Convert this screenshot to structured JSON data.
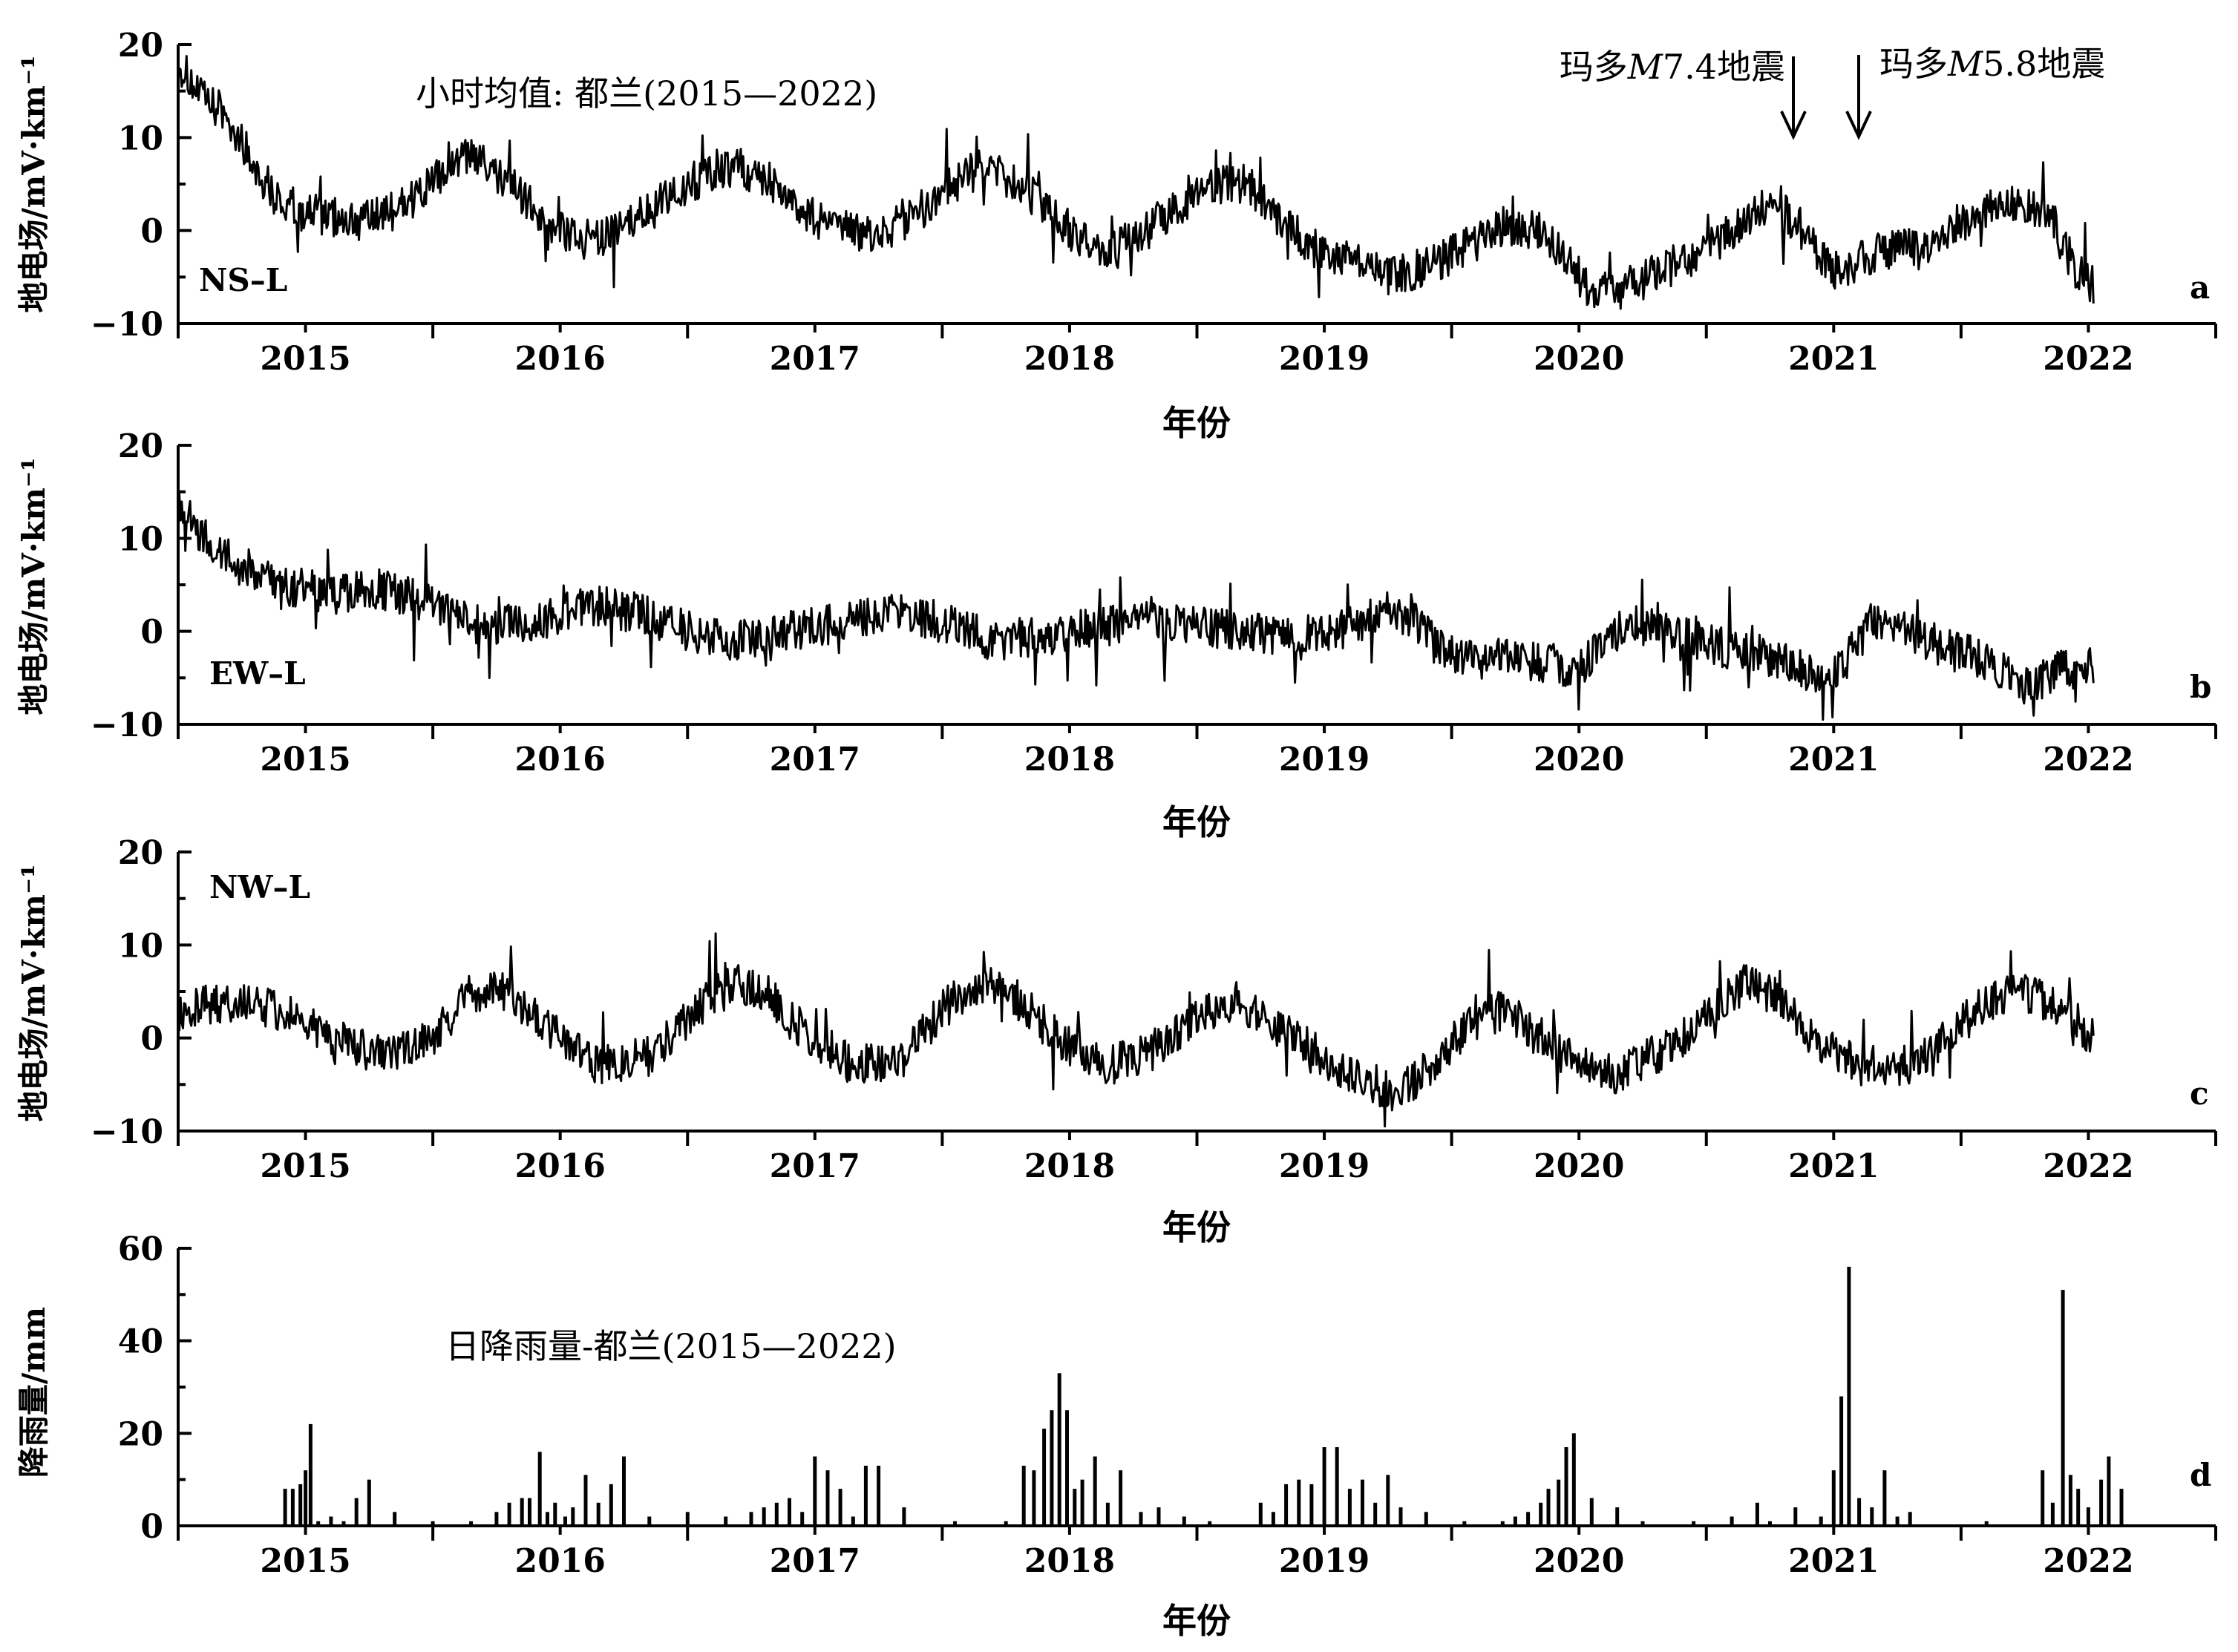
{
  "chart_data": [
    {
      "type": "line",
      "panel_id": "a",
      "series_label": "NS–L",
      "title": "小时均值: 都兰(2015—2022)",
      "ylabel": "地电场/mV·km⁻¹",
      "xlabel": "年份",
      "ylim": [
        -10,
        20
      ],
      "yticks": [
        20,
        10,
        0,
        -10
      ],
      "xlim": [
        2014.5,
        2022.5
      ],
      "xticks": [
        2015,
        2016,
        2017,
        2018,
        2019,
        2020,
        2021,
        2022
      ],
      "grid": false,
      "annotations": [
        {
          "text_prefix": "玛多",
          "text_mag": "M",
          "text_suffix": "7.4地震",
          "x": 2020.83
        },
        {
          "text_prefix": "玛多",
          "text_mag": "M",
          "text_suffix": "5.8地震",
          "x": 2021.1
        }
      ],
      "x": [
        2014.5,
        2014.6,
        2014.7,
        2014.8,
        2014.9,
        2015.0,
        2015.1,
        2015.25,
        2015.4,
        2015.5,
        2015.6,
        2015.65,
        2015.8,
        2015.95,
        2016.1,
        2016.2,
        2016.35,
        2016.5,
        2016.65,
        2016.8,
        2016.95,
        2017.1,
        2017.25,
        2017.4,
        2017.55,
        2017.65,
        2017.8,
        2017.95,
        2018.05,
        2018.15,
        2018.3,
        2018.45,
        2018.6,
        2018.7,
        2018.8,
        2018.95,
        2019.1,
        2019.25,
        2019.4,
        2019.55,
        2019.7,
        2019.85,
        2019.95,
        2020.05,
        2020.2,
        2020.35,
        2020.5,
        2020.65,
        2020.75,
        2020.85,
        2020.95,
        2021.05,
        2021.1,
        2021.2,
        2021.35,
        2021.5,
        2021.6,
        2021.75,
        2021.85,
        2021.95,
        2022.02
      ],
      "y": [
        18,
        14,
        12,
        7,
        3,
        2,
        1.5,
        1,
        3,
        5,
        7.5,
        8,
        5,
        1,
        -1,
        -0.5,
        2,
        5,
        7,
        6,
        2,
        0,
        -0.5,
        2,
        5,
        7,
        5,
        1,
        -1,
        -2,
        0,
        3,
        5,
        5,
        2,
        -2,
        -3,
        -5,
        -4,
        -2,
        0.5,
        0,
        -3,
        -7,
        -6,
        -4,
        -2,
        1,
        3,
        1,
        -3,
        -5,
        -3,
        -2,
        -2,
        1,
        2,
        3,
        1,
        -4,
        -6
      ]
    },
    {
      "type": "line",
      "panel_id": "b",
      "series_label": "EW–L",
      "ylabel": "地电场/mV·km⁻¹",
      "xlabel": "年份",
      "ylim": [
        -10,
        20
      ],
      "yticks": [
        20,
        10,
        0,
        -10
      ],
      "xlim": [
        2014.5,
        2022.5
      ],
      "xticks": [
        2015,
        2016,
        2017,
        2018,
        2019,
        2020,
        2021,
        2022
      ],
      "grid": false,
      "x": [
        2014.5,
        2014.6,
        2014.75,
        2014.9,
        2015.1,
        2015.3,
        2015.5,
        2015.7,
        2015.9,
        2016.1,
        2016.3,
        2016.5,
        2016.7,
        2016.9,
        2017.1,
        2017.3,
        2017.5,
        2017.7,
        2017.9,
        2018.1,
        2018.3,
        2018.5,
        2018.7,
        2018.9,
        2019.1,
        2019.25,
        2019.35,
        2019.45,
        2019.6,
        2019.8,
        2020.0,
        2020.15,
        2020.3,
        2020.45,
        2020.6,
        2020.8,
        2020.95,
        2021.05,
        2021.15,
        2021.3,
        2021.45,
        2021.6,
        2021.75,
        2021.9,
        2022.02
      ],
      "y": [
        14,
        10,
        7,
        5,
        4,
        4.5,
        3,
        0.5,
        1,
        3,
        2,
        0,
        -1,
        0,
        1,
        2,
        1,
        -1,
        -0.5,
        0.5,
        1,
        0.5,
        0,
        -0.5,
        0.5,
        2,
        1.5,
        -2,
        -3,
        -3,
        -4,
        0,
        1,
        -1,
        -2,
        -3,
        -5,
        -3,
        1,
        0,
        -2,
        -3,
        -6,
        -4,
        -4
      ]
    },
    {
      "type": "line",
      "panel_id": "c",
      "series_label": "NW–L",
      "ylabel": "地电场/mV·km⁻¹",
      "xlabel": "年份",
      "ylim": [
        -10,
        20
      ],
      "yticks": [
        20,
        10,
        0,
        -10
      ],
      "xlim": [
        2014.5,
        2022.5
      ],
      "xticks": [
        2015,
        2016,
        2017,
        2018,
        2019,
        2020,
        2021,
        2022
      ],
      "grid": false,
      "x": [
        2014.5,
        2014.7,
        2014.9,
        2015.1,
        2015.3,
        2015.5,
        2015.65,
        2015.8,
        2015.95,
        2016.15,
        2016.35,
        2016.5,
        2016.65,
        2016.8,
        2016.95,
        2017.15,
        2017.35,
        2017.5,
        2017.65,
        2017.8,
        2017.95,
        2018.15,
        2018.35,
        2018.5,
        2018.65,
        2018.8,
        2018.95,
        2019.1,
        2019.3,
        2019.45,
        2019.6,
        2019.7,
        2019.85,
        2020.0,
        2020.15,
        2020.35,
        2020.5,
        2020.65,
        2020.8,
        2020.95,
        2021.1,
        2021.3,
        2021.45,
        2021.6,
        2021.75,
        2021.9,
        2022.02
      ],
      "y": [
        3,
        4,
        3,
        0,
        -2,
        0,
        5,
        5,
        1,
        -3,
        -2,
        2,
        6,
        5,
        1,
        -3,
        -2,
        3,
        6,
        4,
        0,
        -3,
        -1,
        2,
        4,
        2,
        -1,
        -4,
        -6,
        -2,
        2,
        3,
        0,
        -3,
        -4,
        -1,
        2,
        6,
        4,
        -1,
        -3,
        -3,
        0,
        4,
        5,
        3,
        0
      ]
    },
    {
      "type": "bar",
      "panel_id": "d",
      "title": "日降雨量-都兰(2015—2022)",
      "ylabel": "降雨量/mm",
      "xlabel": "年份",
      "ylim": [
        0,
        60
      ],
      "yticks": [
        0,
        20,
        40,
        60
      ],
      "xlim": [
        2014.5,
        2022.5
      ],
      "xticks": [
        2015,
        2016,
        2017,
        2018,
        2019,
        2020,
        2021,
        2022
      ],
      "grid": false,
      "x": [
        2014.92,
        2014.95,
        2014.98,
        2015.0,
        2015.02,
        2015.05,
        2015.1,
        2015.15,
        2015.2,
        2015.25,
        2015.35,
        2015.5,
        2015.65,
        2015.75,
        2015.8,
        2015.85,
        2015.88,
        2015.92,
        2015.95,
        2015.98,
        2016.02,
        2016.05,
        2016.1,
        2016.15,
        2016.2,
        2016.25,
        2016.35,
        2016.5,
        2016.65,
        2016.75,
        2016.8,
        2016.85,
        2016.9,
        2016.95,
        2017.0,
        2017.05,
        2017.1,
        2017.15,
        2017.2,
        2017.25,
        2017.35,
        2017.55,
        2017.75,
        2017.82,
        2017.86,
        2017.9,
        2017.93,
        2017.96,
        2017.99,
        2018.02,
        2018.05,
        2018.1,
        2018.15,
        2018.2,
        2018.28,
        2018.35,
        2018.45,
        2018.55,
        2018.75,
        2018.8,
        2018.85,
        2018.9,
        2018.95,
        2019.0,
        2019.05,
        2019.1,
        2019.15,
        2019.2,
        2019.25,
        2019.3,
        2019.4,
        2019.55,
        2019.7,
        2019.75,
        2019.8,
        2019.85,
        2019.88,
        2019.92,
        2019.95,
        2019.98,
        2020.05,
        2020.15,
        2020.25,
        2020.45,
        2020.6,
        2020.7,
        2020.75,
        2020.85,
        2020.95,
        2021.0,
        2021.03,
        2021.06,
        2021.1,
        2021.15,
        2021.2,
        2021.25,
        2021.3,
        2021.6,
        2021.82,
        2021.86,
        2021.9,
        2021.93,
        2021.96,
        2022.0,
        2022.05,
        2022.08,
        2022.13
      ],
      "values": [
        8,
        8,
        9,
        12,
        22,
        1,
        2,
        1,
        6,
        10,
        3,
        1,
        1,
        3,
        5,
        6,
        6,
        16,
        3,
        5,
        2,
        4,
        11,
        5,
        9,
        15,
        2,
        3,
        2,
        3,
        4,
        5,
        6,
        3,
        15,
        12,
        8,
        2,
        13,
        13,
        4,
        1,
        1,
        13,
        12,
        21,
        25,
        33,
        25,
        8,
        10,
        15,
        5,
        12,
        3,
        4,
        2,
        1,
        5,
        3,
        9,
        10,
        9,
        17,
        17,
        8,
        10,
        5,
        11,
        4,
        3,
        1,
        1,
        2,
        3,
        5,
        8,
        10,
        17,
        20,
        6,
        4,
        1,
        1,
        2,
        5,
        1,
        4,
        2,
        12,
        28,
        56,
        6,
        4,
        12,
        2,
        3,
        1,
        12,
        5,
        51,
        11,
        8,
        4,
        10,
        15,
        8
      ]
    }
  ],
  "panels": [
    {
      "letter": "a",
      "series_label": "NS–L",
      "ylabel": "地电场/mV·km⁻¹",
      "xlabel": "年份",
      "title": "小时均值: 都兰(2015—2022)"
    },
    {
      "letter": "b",
      "series_label": "EW–L",
      "ylabel": "地电场/mV·km⁻¹",
      "xlabel": "年份"
    },
    {
      "letter": "c",
      "series_label": "NW–L",
      "ylabel": "地电场/mV·km⁻¹",
      "xlabel": "年份"
    },
    {
      "letter": "d",
      "ylabel": "降雨量/mm",
      "xlabel": "年份",
      "title": "日降雨量-都兰(2015—2022)"
    }
  ],
  "annotations": {
    "eq1": {
      "prefix": "玛多",
      "mag": "M",
      "suffix": "7.4地震"
    },
    "eq2": {
      "prefix": "玛多",
      "mag": "M",
      "suffix": "5.8地震"
    }
  }
}
